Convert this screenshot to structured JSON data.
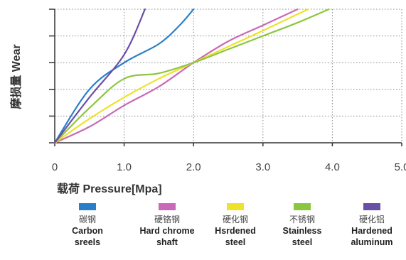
{
  "chart_data": {
    "type": "line",
    "title": "",
    "xlabel": "载荷 Pressure[Mpa]",
    "ylabel": "摩损量 Wear",
    "xlim": [
      0,
      5.0
    ],
    "ylim": [
      0,
      5
    ],
    "x_ticks": [
      "0",
      "1.0",
      "2.0",
      "3.0",
      "4.0",
      "5.0"
    ],
    "grid": true,
    "legend_position": "bottom",
    "series": [
      {
        "name": "碳钢 Carbon sreels",
        "name_cn": "碳钢",
        "name_en": [
          "Carbon",
          "sreels"
        ],
        "color": "#2b7fc9",
        "points": [
          [
            0,
            0
          ],
          [
            0.5,
            2.0
          ],
          [
            1.0,
            3.0
          ],
          [
            1.5,
            3.7
          ],
          [
            1.8,
            4.4
          ],
          [
            2.0,
            5.0
          ]
        ]
      },
      {
        "name": "硬铬钢 Hard chrome shaft",
        "name_cn": "硬铬钢",
        "name_en": [
          "Hard chrome",
          "shaft"
        ],
        "color": "#c86ab7",
        "points": [
          [
            0,
            0
          ],
          [
            0.5,
            0.6
          ],
          [
            1.0,
            1.4
          ],
          [
            1.5,
            2.1
          ],
          [
            2.0,
            3.0
          ],
          [
            2.5,
            3.8
          ],
          [
            3.0,
            4.4
          ],
          [
            3.5,
            5.0
          ]
        ]
      },
      {
        "name": "硬化钢 Hsrdened steel",
        "name_cn": "硬化钢",
        "name_en": [
          "Hsrdened",
          "steel"
        ],
        "color": "#f0e12a",
        "points": [
          [
            0,
            0
          ],
          [
            0.5,
            0.9
          ],
          [
            1.0,
            1.7
          ],
          [
            1.5,
            2.4
          ],
          [
            2.0,
            3.0
          ],
          [
            2.5,
            3.6
          ],
          [
            3.0,
            4.2
          ],
          [
            3.65,
            5.0
          ]
        ]
      },
      {
        "name": "不锈钢 Stainless steel",
        "name_cn": "不锈钢",
        "name_en": [
          "Stainless",
          "steel"
        ],
        "color": "#8cc640",
        "points": [
          [
            0,
            0
          ],
          [
            0.5,
            1.3
          ],
          [
            1.0,
            2.4
          ],
          [
            1.5,
            2.6
          ],
          [
            2.0,
            3.0
          ],
          [
            2.5,
            3.5
          ],
          [
            3.0,
            4.0
          ],
          [
            3.5,
            4.5
          ],
          [
            3.95,
            5.0
          ]
        ]
      },
      {
        "name": "硬化铝 Hardened aluminum",
        "name_cn": "硬化铝",
        "name_en": [
          "Hardened",
          "aluminum"
        ],
        "color": "#6b4ea6",
        "points": [
          [
            0,
            0
          ],
          [
            0.5,
            1.7
          ],
          [
            1.0,
            3.3
          ],
          [
            1.3,
            5.0
          ]
        ]
      }
    ]
  }
}
